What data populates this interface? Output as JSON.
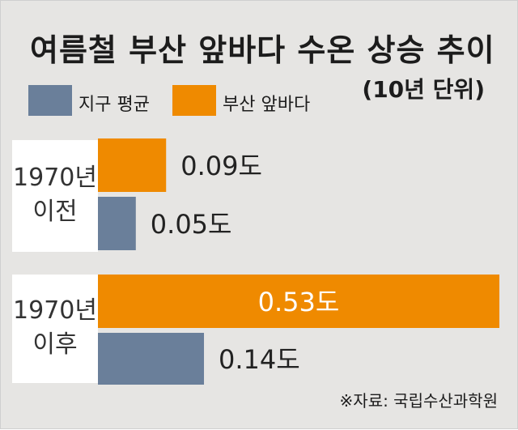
{
  "chart_data": {
    "type": "bar",
    "orientation": "horizontal",
    "title": "여름철 부산 앞바다 수온 상승 추이",
    "unit_note": "(10년 단위)",
    "categories": [
      {
        "line1": "1970년",
        "line2": "이전"
      },
      {
        "line1": "1970년",
        "line2": "이후"
      }
    ],
    "series": [
      {
        "name": "지구 평균",
        "color": "#6a7f9a",
        "values": [
          0.05,
          0.14
        ],
        "value_labels": [
          "0.05도",
          "0.14도"
        ]
      },
      {
        "name": "부산 앞바다",
        "color": "#ef8a00",
        "values": [
          0.09,
          0.53
        ],
        "value_labels": [
          "0.09도",
          "0.53도"
        ]
      }
    ],
    "xlim": [
      0,
      0.53
    ],
    "grid": false,
    "legend_placement": "top-left",
    "source": "※자료: 국립수산과학원"
  }
}
